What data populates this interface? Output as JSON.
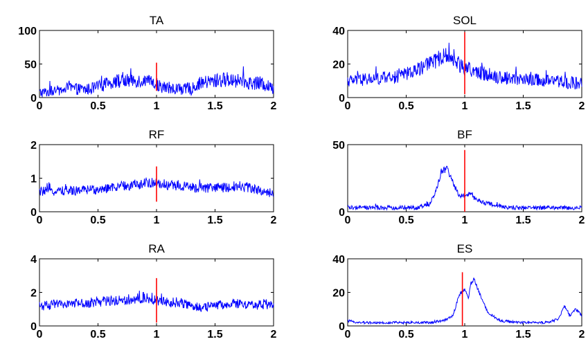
{
  "colors": {
    "signal": "#0000ff",
    "marker": "#ff0000",
    "axes": "#000000",
    "background": "#ffffff"
  },
  "chart_data": [
    {
      "type": "line",
      "title": "TA",
      "xlim": [
        0,
        2
      ],
      "ylim": [
        0,
        100
      ],
      "xticks": [
        "0",
        "0.5",
        "1",
        "1.5",
        "2"
      ],
      "yticks": [
        "0",
        "50",
        "100"
      ],
      "marker": {
        "x": 1,
        "y_range": [
          10,
          52
        ]
      },
      "series": [
        {
          "x": [
            0,
            0.1,
            0.2,
            0.25,
            0.3,
            0.4,
            0.5,
            0.6,
            0.65,
            0.7,
            0.8,
            0.9,
            0.95,
            1.0,
            1.05,
            1.1,
            1.2,
            1.3,
            1.35,
            1.4,
            1.5,
            1.6,
            1.7,
            1.8,
            1.9,
            2.0
          ],
          "values": [
            7,
            9,
            11,
            15,
            13,
            12,
            16,
            22,
            25,
            24,
            26,
            25,
            22,
            20,
            16,
            14,
            13,
            12,
            20,
            22,
            25,
            27,
            25,
            22,
            20,
            14
          ],
          "noise": 11
        }
      ]
    },
    {
      "type": "line",
      "title": "SOL",
      "xlim": [
        0,
        2
      ],
      "ylim": [
        0,
        40
      ],
      "xticks": [
        "0",
        "0.5",
        "1",
        "1.5",
        "2"
      ],
      "yticks": [
        "0",
        "20",
        "40"
      ],
      "marker": {
        "x": 1,
        "y_range": [
          2,
          39
        ]
      },
      "series": [
        {
          "x": [
            0,
            0.2,
            0.4,
            0.5,
            0.6,
            0.7,
            0.8,
            0.85,
            0.9,
            0.95,
            1.0,
            1.1,
            1.2,
            1.3,
            1.5,
            1.7,
            1.9,
            2.0
          ],
          "values": [
            10,
            11,
            12,
            14,
            17,
            20,
            24,
            25,
            23,
            20,
            18,
            15,
            14,
            12,
            11,
            10,
            9,
            8
          ],
          "noise": 5
        }
      ]
    },
    {
      "type": "line",
      "title": "RF",
      "xlim": [
        0,
        2
      ],
      "ylim": [
        0,
        2
      ],
      "xticks": [
        "0",
        "0.5",
        "1",
        "1.5",
        "2"
      ],
      "yticks": [
        "0",
        "1",
        "2"
      ],
      "marker": {
        "x": 1,
        "y_range": [
          0.3,
          1.35
        ]
      },
      "series": [
        {
          "x": [
            0,
            0.2,
            0.4,
            0.6,
            0.8,
            0.9,
            1.0,
            1.1,
            1.2,
            1.4,
            1.6,
            1.7,
            1.8,
            2.0
          ],
          "values": [
            0.6,
            0.62,
            0.65,
            0.7,
            0.8,
            0.85,
            0.85,
            0.8,
            0.75,
            0.7,
            0.72,
            0.78,
            0.7,
            0.55
          ],
          "noise": 0.16
        }
      ]
    },
    {
      "type": "line",
      "title": "BF",
      "xlim": [
        0,
        2
      ],
      "ylim": [
        0,
        50
      ],
      "xticks": [
        "0",
        "0.5",
        "1",
        "1.5",
        "2"
      ],
      "yticks": [
        "0",
        "50"
      ],
      "marker": {
        "x": 1,
        "y_range": [
          0,
          46
        ]
      },
      "series": [
        {
          "x": [
            0,
            0.3,
            0.5,
            0.6,
            0.7,
            0.75,
            0.8,
            0.85,
            0.9,
            0.95,
            1.0,
            1.05,
            1.1,
            1.15,
            1.2,
            1.3,
            1.4,
            1.6,
            1.8,
            2.0
          ],
          "values": [
            3,
            3,
            3,
            3,
            6,
            14,
            30,
            32,
            22,
            12,
            12,
            13,
            9,
            7,
            6,
            4,
            3,
            3,
            3,
            3
          ],
          "noise": 2.5
        }
      ]
    },
    {
      "type": "line",
      "title": "RA",
      "xlim": [
        0,
        2
      ],
      "ylim": [
        0,
        4
      ],
      "xticks": [
        "0",
        "0.5",
        "1",
        "1.5",
        "2"
      ],
      "yticks": [
        "0",
        "2",
        "4"
      ],
      "marker": {
        "x": 1,
        "y_range": [
          0.2,
          2.85
        ]
      },
      "series": [
        {
          "x": [
            0,
            0.2,
            0.4,
            0.6,
            0.8,
            0.9,
            1.0,
            1.1,
            1.2,
            1.3,
            1.4,
            1.5,
            1.6,
            1.8,
            2.0
          ],
          "values": [
            1.2,
            1.3,
            1.4,
            1.5,
            1.6,
            1.7,
            1.5,
            1.4,
            1.4,
            1.2,
            1.1,
            1.2,
            1.3,
            1.3,
            1.2
          ],
          "noise": 0.33
        }
      ]
    },
    {
      "type": "line",
      "title": "ES",
      "xlim": [
        0,
        2
      ],
      "ylim": [
        0,
        40
      ],
      "xticks": [
        "0",
        "0.5",
        "1",
        "1.5",
        "2"
      ],
      "yticks": [
        "0",
        "20",
        "40"
      ],
      "marker": {
        "x": 0.98,
        "y_range": [
          0,
          32
        ]
      },
      "series": [
        {
          "x": [
            0,
            0.1,
            0.3,
            0.5,
            0.7,
            0.8,
            0.85,
            0.9,
            0.95,
            1.0,
            1.03,
            1.05,
            1.08,
            1.1,
            1.15,
            1.2,
            1.3,
            1.5,
            1.7,
            1.8,
            1.85,
            1.9,
            1.95,
            2.0
          ],
          "values": [
            3,
            2,
            2,
            2,
            2,
            3,
            4,
            6,
            18,
            22,
            16,
            25,
            28,
            24,
            15,
            8,
            3,
            2,
            2,
            4,
            12,
            6,
            10,
            6
          ],
          "noise": 1.2
        }
      ]
    }
  ]
}
